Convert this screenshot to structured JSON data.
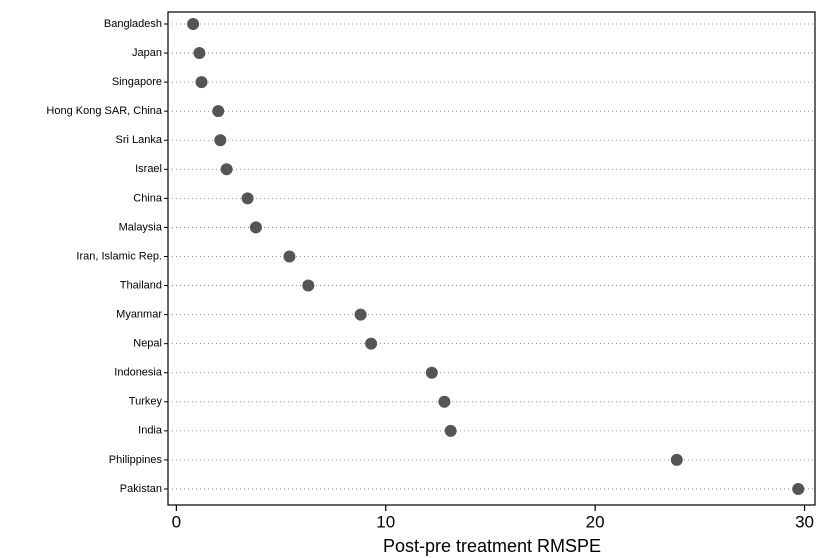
{
  "chart_data": {
    "type": "dot",
    "categories": [
      "Bangladesh",
      "Japan",
      "Singapore",
      "Hong Kong SAR, China",
      "Sri Lanka",
      "Israel",
      "China",
      "Malaysia",
      "Iran, Islamic Rep.",
      "Thailand",
      "Myanmar",
      "Nepal",
      "Indonesia",
      "Turkey",
      "India",
      "Philippines",
      "Pakistan"
    ],
    "values": [
      0.8,
      1.1,
      1.2,
      2.0,
      2.1,
      2.4,
      3.4,
      3.8,
      5.4,
      6.3,
      8.8,
      9.3,
      12.2,
      12.8,
      13.1,
      23.9,
      29.7
    ],
    "color": "#555555",
    "x_label": "Post-pre treatment RMSPE",
    "xlim": [
      -0.4,
      30.5
    ],
    "xticks": [
      0,
      10,
      20,
      30
    ],
    "grid": true
  }
}
